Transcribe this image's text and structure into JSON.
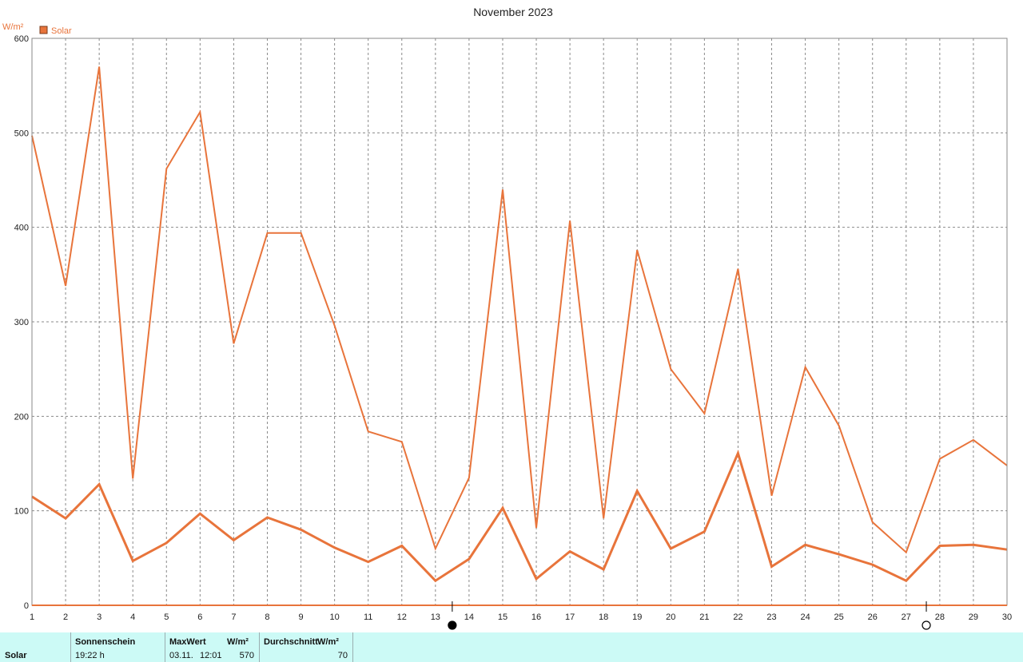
{
  "chart_data": {
    "type": "line",
    "title": "November 2023",
    "ylabel": "W/m²",
    "ylim": [
      0,
      600
    ],
    "yticks": [
      0,
      100,
      200,
      300,
      400,
      500,
      600
    ],
    "x": [
      1,
      2,
      3,
      4,
      5,
      6,
      7,
      8,
      9,
      10,
      11,
      12,
      13,
      14,
      15,
      16,
      17,
      18,
      19,
      20,
      21,
      22,
      23,
      24,
      25,
      26,
      27,
      28,
      29,
      30
    ],
    "xlim": [
      1,
      30
    ],
    "grid": true,
    "legend": {
      "position": "top-left",
      "entries": [
        "Solar"
      ]
    },
    "series": [
      {
        "name": "Solar",
        "role": "maximum",
        "color": "#e8743b",
        "values": [
          497,
          338,
          570,
          134,
          462,
          522,
          277,
          394,
          394,
          296,
          184,
          173,
          60,
          135,
          440,
          82,
          407,
          92,
          376,
          250,
          203,
          356,
          116,
          252,
          190,
          88,
          56,
          155,
          175,
          148
        ]
      },
      {
        "name": "Solar",
        "role": "average",
        "color": "#e8743b",
        "values": [
          115,
          92,
          128,
          47,
          66,
          97,
          69,
          93,
          80,
          61,
          46,
          63,
          26,
          49,
          103,
          28,
          57,
          38,
          121,
          60,
          78,
          161,
          41,
          64,
          54,
          43,
          26,
          63,
          64,
          59
        ]
      }
    ],
    "annotations": [
      {
        "type": "moon-phase",
        "phase": "new-moon",
        "x": 13.5
      },
      {
        "type": "moon-phase",
        "phase": "full-moon",
        "x": 27.6
      }
    ]
  },
  "stats": {
    "row_label": "Solar",
    "sunshine_header": "Sonnenschein",
    "sunshine_value": "19:22 h",
    "max_header": "MaxWert",
    "max_unit": "W/m²",
    "max_date": "03.11.",
    "max_time": "12:01",
    "max_value": "570",
    "avg_header": "Durchschnitt",
    "avg_unit": "W/m²",
    "avg_value": "70"
  },
  "colors": {
    "series": "#e8743b",
    "grid": "#8a8a8a",
    "frame": "#8a8a8a",
    "stats_background": "#ccfaf6"
  }
}
